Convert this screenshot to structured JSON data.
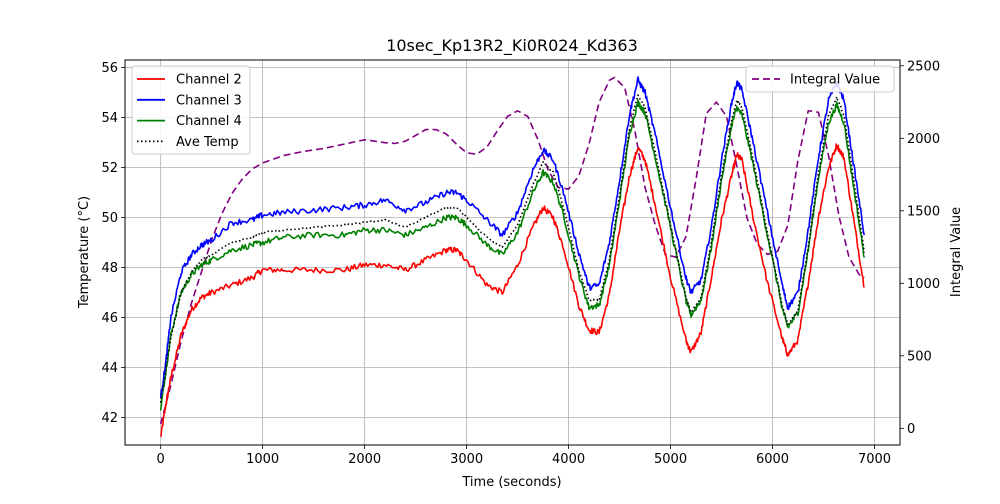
{
  "chart_data": {
    "type": "line",
    "title": "10sec_Kp13R2_Ki0R024_Kd363",
    "xlabel": "Time (seconds)",
    "ylabel": "Temperature (°C)",
    "y2label": "Integral Value",
    "xlim": [
      -350,
      7250
    ],
    "ylim": [
      40.9,
      56.3
    ],
    "y2lim": [
      -115,
      2540
    ],
    "xticks": [
      0,
      1000,
      2000,
      3000,
      4000,
      5000,
      6000,
      7000
    ],
    "yticks": [
      42,
      44,
      46,
      48,
      50,
      52,
      54,
      56
    ],
    "y2ticks": [
      0,
      500,
      1000,
      1500,
      2000,
      2500
    ],
    "grid": true,
    "legend_left": {
      "placement": "upper left",
      "entries": [
        "Channel 2",
        "Channel 3",
        "Channel 4",
        "Ave Temp"
      ]
    },
    "legend_right": {
      "placement": "upper right",
      "entries": [
        "Integral Value"
      ]
    },
    "colors": {
      "Channel 2": "#ff0000",
      "Channel 3": "#0000ff",
      "Channel 4": "#008000",
      "Ave Temp": "#000000",
      "Integral Value": "#800080"
    },
    "series": [
      {
        "name": "Channel 2",
        "axis": "left",
        "style": "solid",
        "points": [
          [
            0,
            41.2
          ],
          [
            50,
            42.5
          ],
          [
            100,
            43.6
          ],
          [
            200,
            45.3
          ],
          [
            300,
            46.3
          ],
          [
            400,
            46.8
          ],
          [
            500,
            47.0
          ],
          [
            700,
            47.3
          ],
          [
            900,
            47.6
          ],
          [
            1000,
            47.9
          ],
          [
            1200,
            47.9
          ],
          [
            1500,
            47.9
          ],
          [
            1800,
            47.9
          ],
          [
            2000,
            48.1
          ],
          [
            2200,
            48.1
          ],
          [
            2400,
            47.9
          ],
          [
            2600,
            48.3
          ],
          [
            2800,
            48.7
          ],
          [
            2900,
            48.7
          ],
          [
            3000,
            48.3
          ],
          [
            3200,
            47.3
          ],
          [
            3350,
            47.0
          ],
          [
            3500,
            48.1
          ],
          [
            3650,
            49.6
          ],
          [
            3750,
            50.4
          ],
          [
            3850,
            50.0
          ],
          [
            3950,
            48.8
          ],
          [
            4100,
            46.5
          ],
          [
            4200,
            45.5
          ],
          [
            4300,
            45.4
          ],
          [
            4400,
            46.9
          ],
          [
            4500,
            49.5
          ],
          [
            4600,
            51.7
          ],
          [
            4680,
            52.8
          ],
          [
            4750,
            52.3
          ],
          [
            4850,
            50.5
          ],
          [
            5000,
            47.6
          ],
          [
            5150,
            45.1
          ],
          [
            5200,
            44.6
          ],
          [
            5300,
            45.4
          ],
          [
            5400,
            47.6
          ],
          [
            5500,
            49.9
          ],
          [
            5600,
            51.7
          ],
          [
            5650,
            52.5
          ],
          [
            5700,
            52.3
          ],
          [
            5800,
            50.2
          ],
          [
            5950,
            47.4
          ],
          [
            6100,
            45.1
          ],
          [
            6150,
            44.5
          ],
          [
            6250,
            45.1
          ],
          [
            6350,
            47.4
          ],
          [
            6450,
            50.0
          ],
          [
            6550,
            52.0
          ],
          [
            6630,
            52.9
          ],
          [
            6700,
            52.4
          ],
          [
            6800,
            49.8
          ],
          [
            6900,
            47.2
          ]
        ]
      },
      {
        "name": "Channel 3",
        "axis": "left",
        "style": "solid",
        "points": [
          [
            0,
            42.8
          ],
          [
            50,
            44.2
          ],
          [
            100,
            46.0
          ],
          [
            200,
            47.8
          ],
          [
            300,
            48.5
          ],
          [
            400,
            48.9
          ],
          [
            500,
            49.1
          ],
          [
            700,
            49.8
          ],
          [
            900,
            49.9
          ],
          [
            1000,
            50.1
          ],
          [
            1200,
            50.2
          ],
          [
            1500,
            50.3
          ],
          [
            1800,
            50.4
          ],
          [
            2000,
            50.5
          ],
          [
            2200,
            50.7
          ],
          [
            2400,
            50.3
          ],
          [
            2600,
            50.6
          ],
          [
            2800,
            51.0
          ],
          [
            2900,
            51.0
          ],
          [
            3000,
            50.7
          ],
          [
            3200,
            49.9
          ],
          [
            3350,
            49.3
          ],
          [
            3500,
            50.2
          ],
          [
            3650,
            51.9
          ],
          [
            3750,
            52.7
          ],
          [
            3850,
            52.3
          ],
          [
            3950,
            51.0
          ],
          [
            4100,
            48.6
          ],
          [
            4200,
            47.2
          ],
          [
            4300,
            47.3
          ],
          [
            4400,
            49.0
          ],
          [
            4500,
            51.5
          ],
          [
            4600,
            54.2
          ],
          [
            4680,
            55.5
          ],
          [
            4750,
            55.0
          ],
          [
            4850,
            53.3
          ],
          [
            5000,
            50.4
          ],
          [
            5150,
            47.6
          ],
          [
            5200,
            47.0
          ],
          [
            5300,
            47.5
          ],
          [
            5400,
            49.6
          ],
          [
            5500,
            52.3
          ],
          [
            5600,
            54.6
          ],
          [
            5650,
            55.4
          ],
          [
            5700,
            55.1
          ],
          [
            5800,
            53.2
          ],
          [
            5950,
            50.2
          ],
          [
            6100,
            47.2
          ],
          [
            6150,
            46.4
          ],
          [
            6250,
            47.0
          ],
          [
            6350,
            49.5
          ],
          [
            6450,
            52.4
          ],
          [
            6550,
            54.7
          ],
          [
            6630,
            55.4
          ],
          [
            6700,
            54.7
          ],
          [
            6800,
            52.0
          ],
          [
            6900,
            49.3
          ]
        ]
      },
      {
        "name": "Channel 4",
        "axis": "left",
        "style": "solid",
        "points": [
          [
            0,
            42.4
          ],
          [
            50,
            43.8
          ],
          [
            100,
            45.3
          ],
          [
            200,
            47.0
          ],
          [
            300,
            47.7
          ],
          [
            400,
            48.1
          ],
          [
            500,
            48.3
          ],
          [
            700,
            48.7
          ],
          [
            900,
            48.9
          ],
          [
            1000,
            49.0
          ],
          [
            1200,
            49.2
          ],
          [
            1500,
            49.3
          ],
          [
            1800,
            49.3
          ],
          [
            2000,
            49.5
          ],
          [
            2200,
            49.5
          ],
          [
            2400,
            49.3
          ],
          [
            2600,
            49.6
          ],
          [
            2800,
            50.0
          ],
          [
            2900,
            50.0
          ],
          [
            3000,
            49.7
          ],
          [
            3200,
            48.9
          ],
          [
            3350,
            48.5
          ],
          [
            3500,
            49.4
          ],
          [
            3650,
            51.0
          ],
          [
            3750,
            51.8
          ],
          [
            3850,
            51.4
          ],
          [
            3950,
            50.1
          ],
          [
            4100,
            47.7
          ],
          [
            4200,
            46.4
          ],
          [
            4300,
            46.5
          ],
          [
            4400,
            48.1
          ],
          [
            4500,
            50.7
          ],
          [
            4600,
            53.4
          ],
          [
            4680,
            54.6
          ],
          [
            4750,
            54.2
          ],
          [
            4850,
            52.4
          ],
          [
            5000,
            49.6
          ],
          [
            5150,
            46.7
          ],
          [
            5200,
            46.1
          ],
          [
            5300,
            46.7
          ],
          [
            5400,
            48.8
          ],
          [
            5500,
            51.5
          ],
          [
            5600,
            53.7
          ],
          [
            5650,
            54.4
          ],
          [
            5700,
            54.1
          ],
          [
            5800,
            52.3
          ],
          [
            5950,
            49.3
          ],
          [
            6100,
            46.3
          ],
          [
            6150,
            45.6
          ],
          [
            6250,
            46.2
          ],
          [
            6350,
            48.7
          ],
          [
            6450,
            51.6
          ],
          [
            6550,
            53.8
          ],
          [
            6630,
            54.5
          ],
          [
            6700,
            53.8
          ],
          [
            6800,
            51.1
          ],
          [
            6900,
            48.4
          ]
        ]
      },
      {
        "name": "Ave Temp",
        "axis": "left",
        "style": "dotted",
        "points": [
          [
            0,
            42.6
          ],
          [
            50,
            44.0
          ],
          [
            100,
            45.2
          ],
          [
            200,
            47.0
          ],
          [
            300,
            47.8
          ],
          [
            400,
            48.3
          ],
          [
            500,
            48.5
          ],
          [
            700,
            49.0
          ],
          [
            900,
            49.2
          ],
          [
            1000,
            49.4
          ],
          [
            1200,
            49.5
          ],
          [
            1500,
            49.6
          ],
          [
            1800,
            49.7
          ],
          [
            2000,
            49.8
          ],
          [
            2200,
            49.9
          ],
          [
            2400,
            49.6
          ],
          [
            2600,
            50.0
          ],
          [
            2800,
            50.4
          ],
          [
            2900,
            50.4
          ],
          [
            3000,
            50.0
          ],
          [
            3200,
            49.2
          ],
          [
            3350,
            48.8
          ],
          [
            3500,
            49.7
          ],
          [
            3650,
            51.3
          ],
          [
            3750,
            52.2
          ],
          [
            3850,
            51.8
          ],
          [
            3950,
            50.4
          ],
          [
            4100,
            47.9
          ],
          [
            4200,
            46.7
          ],
          [
            4300,
            46.7
          ],
          [
            4400,
            48.3
          ],
          [
            4500,
            50.9
          ],
          [
            4600,
            53.6
          ],
          [
            4680,
            54.9
          ],
          [
            4750,
            54.4
          ],
          [
            4850,
            52.6
          ],
          [
            5000,
            49.7
          ],
          [
            5150,
            46.8
          ],
          [
            5200,
            46.2
          ],
          [
            5300,
            46.8
          ],
          [
            5400,
            49.0
          ],
          [
            5500,
            51.7
          ],
          [
            5600,
            53.9
          ],
          [
            5650,
            54.7
          ],
          [
            5700,
            54.4
          ],
          [
            5800,
            52.5
          ],
          [
            5950,
            49.4
          ],
          [
            6100,
            46.4
          ],
          [
            6150,
            45.7
          ],
          [
            6250,
            46.3
          ],
          [
            6350,
            48.8
          ],
          [
            6450,
            51.8
          ],
          [
            6550,
            54.1
          ],
          [
            6630,
            54.8
          ],
          [
            6700,
            54.1
          ],
          [
            6800,
            51.4
          ],
          [
            6900,
            48.6
          ]
        ]
      },
      {
        "name": "Integral Value",
        "axis": "right",
        "style": "dashed",
        "points": [
          [
            0,
            30
          ],
          [
            100,
            300
          ],
          [
            200,
            600
          ],
          [
            300,
            860
          ],
          [
            400,
            1080
          ],
          [
            500,
            1300
          ],
          [
            600,
            1480
          ],
          [
            700,
            1620
          ],
          [
            800,
            1720
          ],
          [
            900,
            1790
          ],
          [
            1000,
            1830
          ],
          [
            1200,
            1880
          ],
          [
            1400,
            1910
          ],
          [
            1600,
            1930
          ],
          [
            1800,
            1960
          ],
          [
            2000,
            1990
          ],
          [
            2200,
            1970
          ],
          [
            2300,
            1965
          ],
          [
            2400,
            1980
          ],
          [
            2500,
            2020
          ],
          [
            2600,
            2060
          ],
          [
            2700,
            2060
          ],
          [
            2800,
            2030
          ],
          [
            2900,
            1960
          ],
          [
            3000,
            1900
          ],
          [
            3100,
            1890
          ],
          [
            3200,
            1940
          ],
          [
            3300,
            2050
          ],
          [
            3400,
            2150
          ],
          [
            3500,
            2190
          ],
          [
            3600,
            2150
          ],
          [
            3700,
            1990
          ],
          [
            3800,
            1780
          ],
          [
            3900,
            1660
          ],
          [
            4000,
            1650
          ],
          [
            4100,
            1740
          ],
          [
            4200,
            1960
          ],
          [
            4300,
            2250
          ],
          [
            4400,
            2400
          ],
          [
            4450,
            2420
          ],
          [
            4550,
            2350
          ],
          [
            4650,
            2050
          ],
          [
            4750,
            1660
          ],
          [
            4850,
            1400
          ],
          [
            4950,
            1200
          ],
          [
            5050,
            1180
          ],
          [
            5150,
            1320
          ],
          [
            5250,
            1720
          ],
          [
            5350,
            2170
          ],
          [
            5450,
            2250
          ],
          [
            5550,
            2150
          ],
          [
            5650,
            1810
          ],
          [
            5750,
            1450
          ],
          [
            5850,
            1270
          ],
          [
            5950,
            1200
          ],
          [
            6050,
            1220
          ],
          [
            6150,
            1400
          ],
          [
            6250,
            1850
          ],
          [
            6350,
            2190
          ],
          [
            6450,
            2180
          ],
          [
            6550,
            1880
          ],
          [
            6650,
            1470
          ],
          [
            6750,
            1180
          ],
          [
            6850,
            1060
          ],
          [
            6900,
            1040
          ]
        ]
      }
    ]
  }
}
